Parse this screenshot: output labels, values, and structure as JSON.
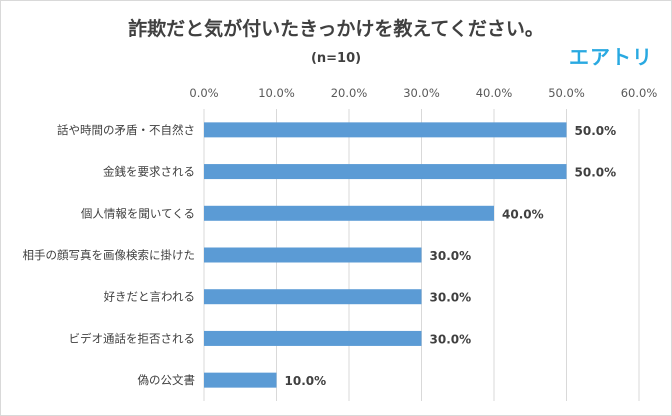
{
  "brand": {
    "logo_text": "エアトリ",
    "color": "#29a9e1"
  },
  "chart_data": {
    "type": "bar",
    "orientation": "horizontal",
    "title": "詐欺だと気が付いたきっかけを教えてください。",
    "subtitle": "(n=10)",
    "categories": [
      "話や時間の矛盾・不自然さ",
      "金銭を要求される",
      "個人情報を聞いてくる",
      "相手の顔写真を画像検索に掛けた",
      "好きだと言われる",
      "ビデオ通話を拒否される",
      "偽の公文書"
    ],
    "values": [
      50.0,
      50.0,
      40.0,
      30.0,
      30.0,
      30.0,
      10.0
    ],
    "value_labels": [
      "50.0%",
      "50.0%",
      "40.0%",
      "30.0%",
      "30.0%",
      "30.0%",
      "10.0%"
    ],
    "xlim": [
      0,
      60
    ],
    "x_ticks": [
      "0.0%",
      "10.0%",
      "20.0%",
      "30.0%",
      "40.0%",
      "50.0%",
      "60.0%"
    ],
    "x_axis_position": "top",
    "grid": true,
    "bar_color": "#5b9bd5",
    "grid_color": "#d9d9d9"
  }
}
